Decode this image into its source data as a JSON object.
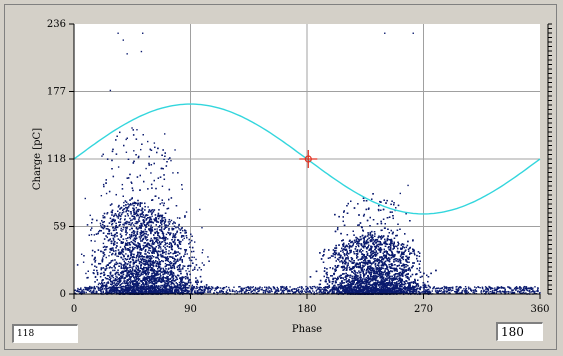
{
  "chart_data": {
    "type": "scatter",
    "xlabel": "Phase",
    "ylabel": "Charge [pC]",
    "xlim": [
      0,
      360
    ],
    "ylim": [
      0,
      236
    ],
    "x_ticks": [
      "0",
      "90",
      "180",
      "270",
      "360"
    ],
    "x_tick_values": [
      0,
      90,
      180,
      270,
      360
    ],
    "y_ticks": [
      "0",
      "59",
      "118",
      "177",
      "236"
    ],
    "y_tick_values": [
      0,
      59,
      118,
      177,
      236
    ],
    "grid": true,
    "colors": {
      "points": "#0a1a6e",
      "sine": "#33d6dd",
      "cursor": "#e03020",
      "grid": "#a0a0a0"
    },
    "series": [
      {
        "kind": "scatter-density",
        "clusters": [
          {
            "x_range": [
              0,
              110
            ],
            "peak_x": 45,
            "typical_max": 85,
            "max": 150
          },
          {
            "x_range": [
              180,
              285
            ],
            "peak_x": 230,
            "typical_max": 55,
            "max": 90
          }
        ],
        "baseline": 3
      },
      {
        "kind": "sine-reference",
        "amplitude": 48,
        "offset": 118,
        "period": 360
      }
    ],
    "outliers": [
      {
        "x": 34,
        "y": 228
      },
      {
        "x": 38,
        "y": 222
      },
      {
        "x": 41,
        "y": 210
      },
      {
        "x": 53,
        "y": 228
      },
      {
        "x": 52,
        "y": 212
      },
      {
        "x": 28,
        "y": 178
      },
      {
        "x": 70,
        "y": 140
      },
      {
        "x": 78,
        "y": 126
      },
      {
        "x": 62,
        "y": 132
      },
      {
        "x": 240,
        "y": 228
      },
      {
        "x": 262,
        "y": 228
      },
      {
        "x": 258,
        "y": 95
      },
      {
        "x": 252,
        "y": 88
      }
    ],
    "cursor": {
      "x": 181,
      "y": 118
    }
  },
  "readouts": {
    "left": "118",
    "right": "180"
  }
}
